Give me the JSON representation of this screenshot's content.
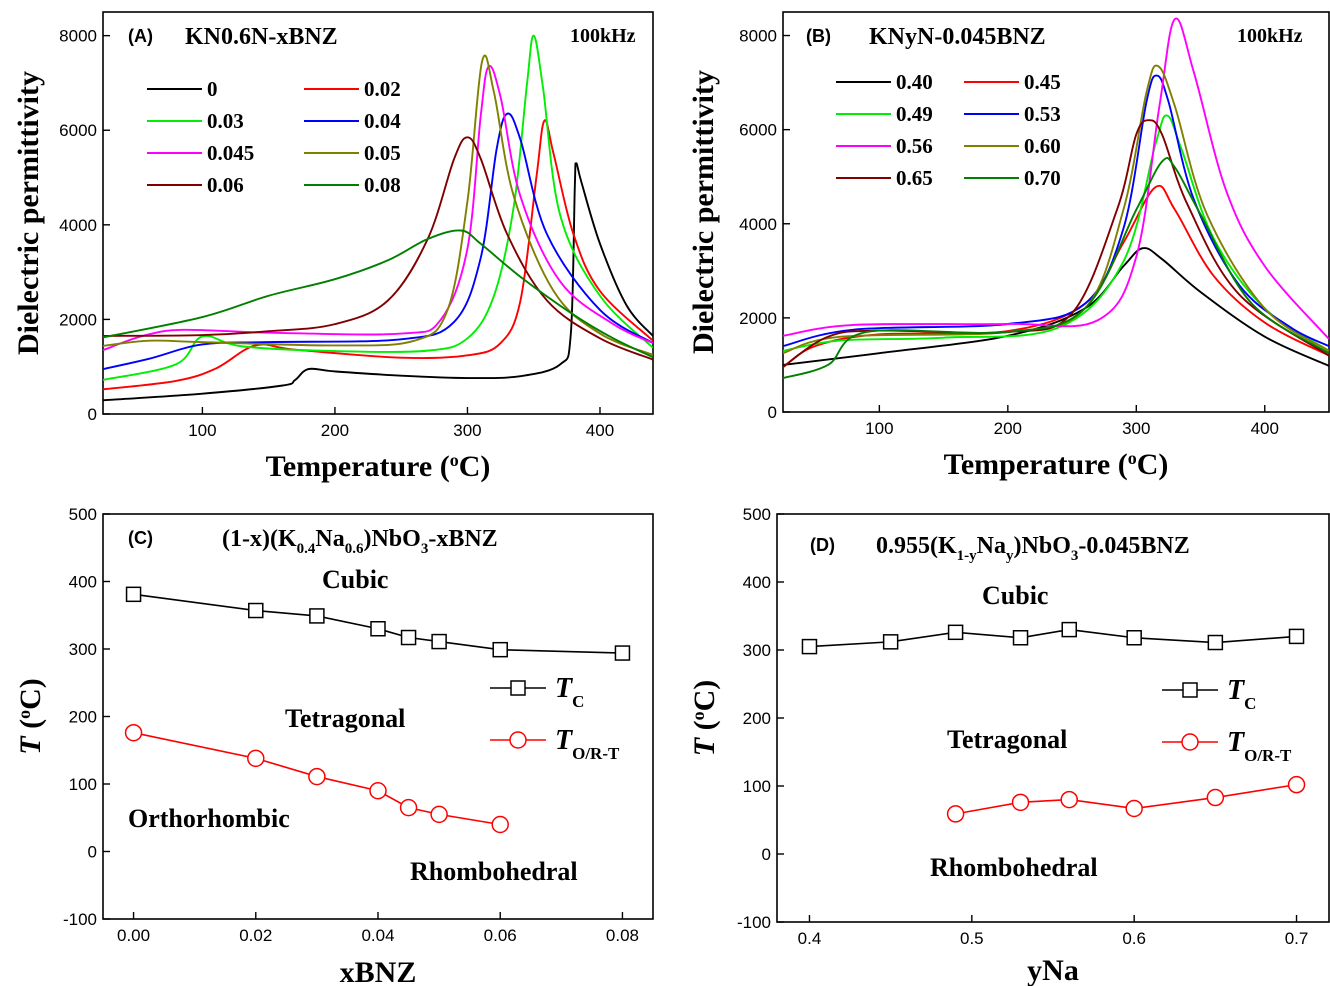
{
  "chart_data": [
    {
      "panel": "(A)",
      "type": "line",
      "title": "KN0.6N-xBNZ",
      "annotation": "100kHz",
      "xlabel": "Temperature (°C)",
      "ylabel": "Dielectric permittivity",
      "xlim": [
        25,
        440
      ],
      "ylim": [
        0,
        8500
      ],
      "xticks": [
        100,
        200,
        300,
        400
      ],
      "yticks": [
        0,
        2000,
        4000,
        6000,
        8000
      ],
      "legend_columns": 2,
      "legend_position": "upper-left",
      "series": [
        {
          "name": "0",
          "color": "#000000",
          "points": [
            [
              25,
              290
            ],
            [
              100,
              430
            ],
            [
              160,
              600
            ],
            [
              170,
              720
            ],
            [
              180,
              950
            ],
            [
              200,
              900
            ],
            [
              250,
              810
            ],
            [
              300,
              760
            ],
            [
              340,
              800
            ],
            [
              370,
              1050
            ],
            [
              378,
              1700
            ],
            [
              381,
              4800
            ],
            [
              382,
              5300
            ],
            [
              386,
              4900
            ],
            [
              400,
              3600
            ],
            [
              420,
              2300
            ],
            [
              440,
              1650
            ]
          ]
        },
        {
          "name": "0.02",
          "color": "#ff0000",
          "points": [
            [
              25,
              520
            ],
            [
              80,
              700
            ],
            [
              110,
              960
            ],
            [
              140,
              1450
            ],
            [
              170,
              1360
            ],
            [
              250,
              1190
            ],
            [
              300,
              1240
            ],
            [
              325,
              1500
            ],
            [
              340,
              2400
            ],
            [
              352,
              5000
            ],
            [
              358,
              6200
            ],
            [
              365,
              5500
            ],
            [
              380,
              3800
            ],
            [
              400,
              2600
            ],
            [
              440,
              1550
            ]
          ]
        },
        {
          "name": "0.03",
          "color": "#00ee00",
          "points": [
            [
              25,
              720
            ],
            [
              80,
              1050
            ],
            [
              100,
              1640
            ],
            [
              130,
              1430
            ],
            [
              200,
              1330
            ],
            [
              270,
              1340
            ],
            [
              300,
              1600
            ],
            [
              320,
              2500
            ],
            [
              335,
              4400
            ],
            [
              345,
              7000
            ],
            [
              350,
              8000
            ],
            [
              357,
              6900
            ],
            [
              370,
              4200
            ],
            [
              400,
              2500
            ],
            [
              440,
              1400
            ]
          ]
        },
        {
          "name": "0.04",
          "color": "#0000ff",
          "points": [
            [
              25,
              950
            ],
            [
              60,
              1170
            ],
            [
              100,
              1470
            ],
            [
              150,
              1520
            ],
            [
              250,
              1580
            ],
            [
              290,
              1950
            ],
            [
              310,
              3300
            ],
            [
              322,
              5600
            ],
            [
              330,
              6350
            ],
            [
              340,
              5800
            ],
            [
              360,
              3800
            ],
            [
              400,
              2200
            ],
            [
              440,
              1500
            ]
          ]
        },
        {
          "name": "0.045",
          "color": "#ff00ff",
          "points": [
            [
              25,
              1350
            ],
            [
              55,
              1650
            ],
            [
              85,
              1780
            ],
            [
              150,
              1720
            ],
            [
              250,
              1700
            ],
            [
              280,
              2000
            ],
            [
              300,
              3500
            ],
            [
              310,
              6300
            ],
            [
              316,
              7350
            ],
            [
              325,
              6700
            ],
            [
              340,
              4600
            ],
            [
              370,
              2800
            ],
            [
              410,
              1900
            ],
            [
              440,
              1500
            ]
          ]
        },
        {
          "name": "0.05",
          "color": "#808000",
          "points": [
            [
              25,
              1440
            ],
            [
              60,
              1550
            ],
            [
              100,
              1520
            ],
            [
              200,
              1450
            ],
            [
              260,
              1550
            ],
            [
              285,
              2200
            ],
            [
              300,
              4500
            ],
            [
              311,
              7450
            ],
            [
              320,
              6800
            ],
            [
              335,
              4600
            ],
            [
              365,
              2600
            ],
            [
              400,
              1700
            ],
            [
              440,
              1250
            ]
          ]
        },
        {
          "name": "0.06",
          "color": "#800000",
          "points": [
            [
              25,
              1650
            ],
            [
              100,
              1670
            ],
            [
              150,
              1750
            ],
            [
              200,
              1900
            ],
            [
              240,
              2400
            ],
            [
              270,
              3700
            ],
            [
              290,
              5400
            ],
            [
              300,
              5850
            ],
            [
              310,
              5400
            ],
            [
              330,
              3800
            ],
            [
              360,
              2400
            ],
            [
              400,
              1600
            ],
            [
              440,
              1150
            ]
          ]
        },
        {
          "name": "0.08",
          "color": "#007f00",
          "points": [
            [
              25,
              1620
            ],
            [
              100,
              2050
            ],
            [
              150,
              2500
            ],
            [
              200,
              2850
            ],
            [
              240,
              3250
            ],
            [
              270,
              3700
            ],
            [
              295,
              3880
            ],
            [
              310,
              3600
            ],
            [
              340,
              2900
            ],
            [
              380,
              2100
            ],
            [
              410,
              1600
            ],
            [
              440,
              1200
            ]
          ]
        }
      ]
    },
    {
      "panel": "(B)",
      "type": "line",
      "title": "KNyN-0.045BNZ",
      "annotation": "100kHz",
      "xlabel": "Temperature (°C)",
      "ylabel": "Dielectric permittivity",
      "xlim": [
        25,
        450
      ],
      "ylim": [
        0,
        8500
      ],
      "xticks": [
        100,
        200,
        300,
        400
      ],
      "yticks": [
        0,
        2000,
        4000,
        6000,
        8000
      ],
      "legend_columns": 2,
      "legend_position": "upper-left",
      "series": [
        {
          "name": "0.40",
          "color": "#000000",
          "points": [
            [
              25,
              1000
            ],
            [
              100,
              1250
            ],
            [
              200,
              1620
            ],
            [
              260,
              2200
            ],
            [
              290,
              3100
            ],
            [
              305,
              3480
            ],
            [
              320,
              3250
            ],
            [
              350,
              2550
            ],
            [
              400,
              1600
            ],
            [
              450,
              980
            ]
          ]
        },
        {
          "name": "0.45",
          "color": "#ff0000",
          "points": [
            [
              25,
              950
            ],
            [
              50,
              1400
            ],
            [
              100,
              1650
            ],
            [
              200,
              1720
            ],
            [
              260,
              2300
            ],
            [
              290,
              3600
            ],
            [
              315,
              4780
            ],
            [
              330,
              4300
            ],
            [
              360,
              2900
            ],
            [
              400,
              1900
            ],
            [
              450,
              1200
            ]
          ]
        },
        {
          "name": "0.49",
          "color": "#00ee00",
          "points": [
            [
              25,
              1300
            ],
            [
              70,
              1520
            ],
            [
              150,
              1580
            ],
            [
              240,
              1800
            ],
            [
              290,
              3200
            ],
            [
              315,
              5700
            ],
            [
              324,
              6300
            ],
            [
              335,
              5600
            ],
            [
              360,
              3700
            ],
            [
              400,
              2200
            ],
            [
              450,
              1300
            ]
          ]
        },
        {
          "name": "0.53",
          "color": "#0000ff",
          "points": [
            [
              25,
              1400
            ],
            [
              80,
              1750
            ],
            [
              200,
              1870
            ],
            [
              260,
              2300
            ],
            [
              290,
              3900
            ],
            [
              308,
              6600
            ],
            [
              316,
              7150
            ],
            [
              325,
              6600
            ],
            [
              345,
              4500
            ],
            [
              380,
              2700
            ],
            [
              420,
              1800
            ],
            [
              450,
              1400
            ]
          ]
        },
        {
          "name": "0.56",
          "color": "#ff00ff",
          "points": [
            [
              25,
              1620
            ],
            [
              80,
              1850
            ],
            [
              200,
              1870
            ],
            [
              270,
              1950
            ],
            [
              300,
              3300
            ],
            [
              318,
              6500
            ],
            [
              330,
              8350
            ],
            [
              345,
              7200
            ],
            [
              370,
              4700
            ],
            [
              400,
              3100
            ],
            [
              450,
              1550
            ]
          ]
        },
        {
          "name": "0.60",
          "color": "#808000",
          "points": [
            [
              25,
              1250
            ],
            [
              70,
              1600
            ],
            [
              200,
              1700
            ],
            [
              260,
              2200
            ],
            [
              290,
              4300
            ],
            [
              308,
              6800
            ],
            [
              317,
              7350
            ],
            [
              330,
              6500
            ],
            [
              355,
              4200
            ],
            [
              400,
              2200
            ],
            [
              450,
              1300
            ]
          ]
        },
        {
          "name": "0.65",
          "color": "#800000",
          "points": [
            [
              25,
              960
            ],
            [
              60,
              1600
            ],
            [
              100,
              1730
            ],
            [
              200,
              1700
            ],
            [
              250,
              2100
            ],
            [
              285,
              4300
            ],
            [
              300,
              5900
            ],
            [
              310,
              6200
            ],
            [
              320,
              5900
            ],
            [
              340,
              4400
            ],
            [
              380,
              2500
            ],
            [
              450,
              1200
            ]
          ]
        },
        {
          "name": "0.70",
          "color": "#007f00",
          "points": [
            [
              25,
              720
            ],
            [
              60,
              1000
            ],
            [
              90,
              1700
            ],
            [
              200,
              1700
            ],
            [
              260,
              2200
            ],
            [
              300,
              4300
            ],
            [
              320,
              5320
            ],
            [
              330,
              5200
            ],
            [
              350,
              4200
            ],
            [
              390,
              2300
            ],
            [
              450,
              1250
            ]
          ]
        }
      ]
    },
    {
      "panel": "(C)",
      "type": "line",
      "title": "(1-x)(K0.4Na0.6)NbO3-xBNZ",
      "xlabel": "xBNZ",
      "ylabel": "T (°C)",
      "xlim": [
        -0.005,
        0.085
      ],
      "ylim": [
        -100,
        500
      ],
      "xticks": [
        0.0,
        0.02,
        0.04,
        0.06,
        0.08
      ],
      "xtick_labels": [
        "0.00",
        "0.02",
        "0.04",
        "0.06",
        "0.08"
      ],
      "yticks": [
        -100,
        0,
        100,
        200,
        300,
        400,
        500
      ],
      "regions": [
        "Cubic",
        "Tetragonal",
        "Orthorhombic",
        "Rhombohedral"
      ],
      "series": [
        {
          "name": "TC",
          "symbol": "T",
          "sub": "C",
          "marker": "square",
          "color": "#000000",
          "x": [
            0.0,
            0.02,
            0.03,
            0.04,
            0.045,
            0.05,
            0.06,
            0.08
          ],
          "y": [
            381,
            357,
            349,
            330,
            317,
            311,
            299,
            294
          ]
        },
        {
          "name": "TO/R-T",
          "symbol": "T",
          "sub": "O/R-T",
          "marker": "circle",
          "color": "#ff0000",
          "x": [
            0.0,
            0.02,
            0.03,
            0.04,
            0.045,
            0.05,
            0.06
          ],
          "y": [
            176,
            138,
            111,
            90,
            65,
            55,
            40
          ]
        }
      ]
    },
    {
      "panel": "(D)",
      "type": "line",
      "title": "0.955(K1-yNay)NbO3-0.045BNZ",
      "xlabel": "yNa",
      "ylabel": "T (°C)",
      "xlim": [
        0.38,
        0.72
      ],
      "ylim": [
        -100,
        500
      ],
      "xticks": [
        0.4,
        0.5,
        0.6,
        0.7
      ],
      "xtick_labels": [
        "0.4",
        "0.5",
        "0.6",
        "0.7"
      ],
      "yticks": [
        -100,
        0,
        100,
        200,
        300,
        400,
        500
      ],
      "regions": [
        "Cubic",
        "Tetragonal",
        "Rhombohedral"
      ],
      "series": [
        {
          "name": "TC",
          "symbol": "T",
          "sub": "C",
          "marker": "square",
          "color": "#000000",
          "x": [
            0.4,
            0.45,
            0.49,
            0.53,
            0.56,
            0.6,
            0.65,
            0.7
          ],
          "y": [
            305,
            312,
            326,
            318,
            330,
            318,
            311,
            320
          ]
        },
        {
          "name": "TO/R-T",
          "symbol": "T",
          "sub": "O/R-T",
          "marker": "circle",
          "color": "#ff0000",
          "x": [
            0.49,
            0.53,
            0.56,
            0.6,
            0.65,
            0.7
          ],
          "y": [
            59,
            76,
            80,
            67,
            83,
            102
          ]
        }
      ]
    }
  ]
}
